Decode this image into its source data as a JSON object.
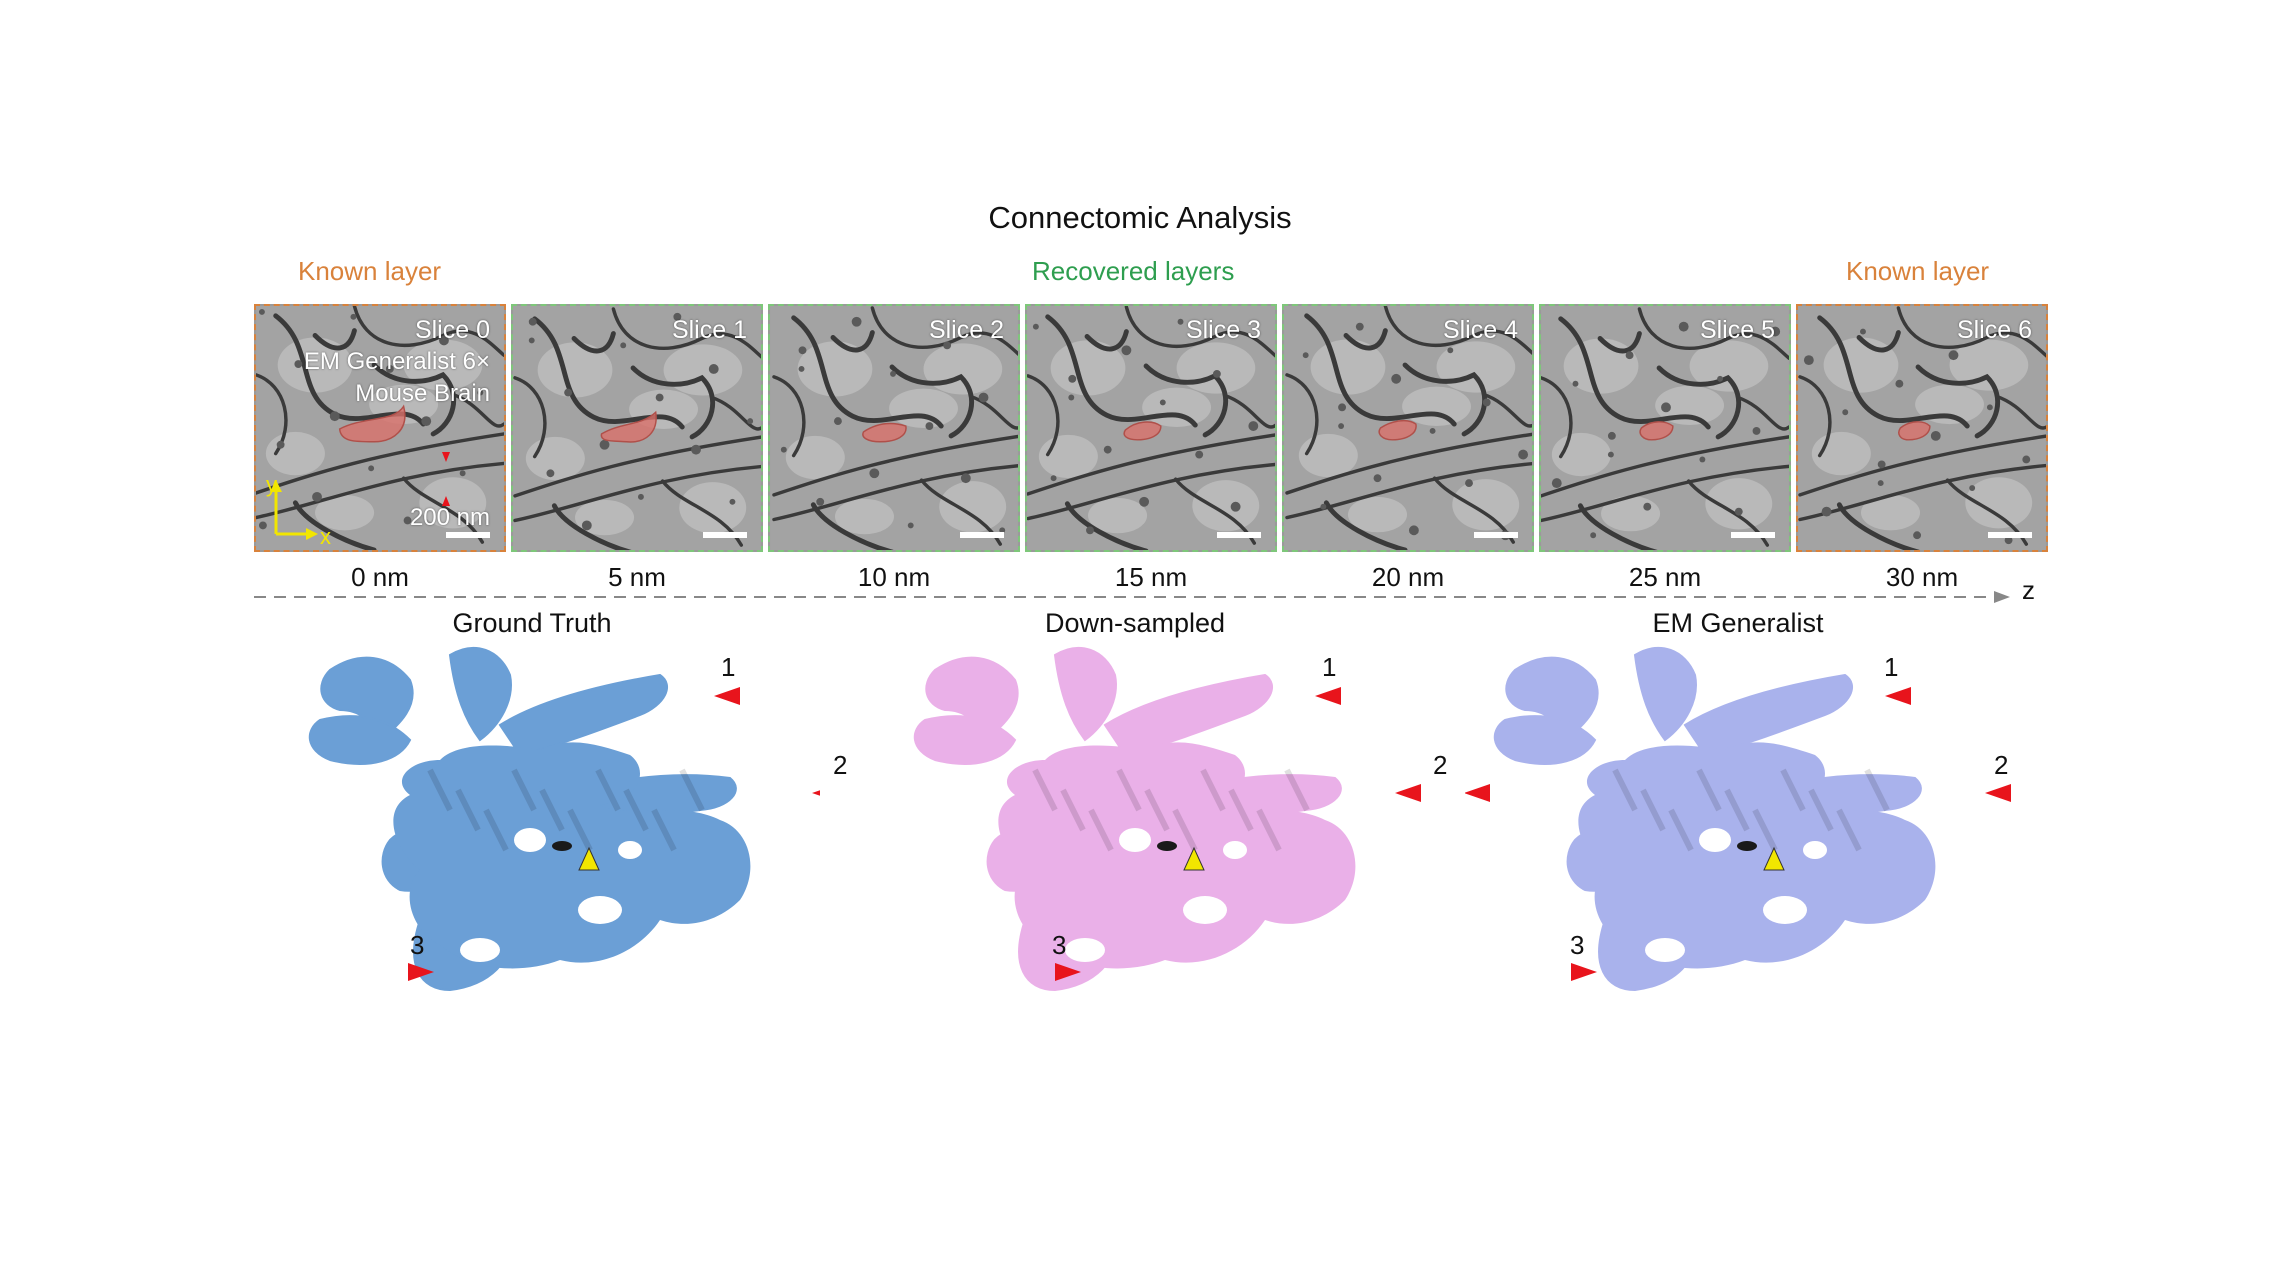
{
  "figure": {
    "title": "Connectomic Analysis",
    "known_layer_label": "Known layer",
    "recovered_label": "Recovered layers",
    "axis_label": "z"
  },
  "slices": [
    {
      "label": "Slice 0",
      "depth": "0 nm",
      "type": "known"
    },
    {
      "label": "Slice 1",
      "depth": "5 nm",
      "type": "recovered"
    },
    {
      "label": "Slice 2",
      "depth": "10 nm",
      "type": "recovered"
    },
    {
      "label": "Slice 3",
      "depth": "15 nm",
      "type": "recovered"
    },
    {
      "label": "Slice 4",
      "depth": "20 nm",
      "type": "recovered"
    },
    {
      "label": "Slice 5",
      "depth": "25 nm",
      "type": "recovered"
    },
    {
      "label": "Slice 6",
      "depth": "30 nm",
      "type": "known"
    }
  ],
  "slice0_info": {
    "line1": "EM Generalist 6×",
    "line2": "Mouse Brain",
    "scale_bar": "200 nm",
    "axis_y": "y",
    "axis_x": "x"
  },
  "renders": [
    {
      "title": "Ground Truth",
      "color": "#6b9fd6",
      "marker_labels": [
        "1",
        "2",
        "3"
      ]
    },
    {
      "title": "Down-sampled",
      "color": "#eab0e8",
      "marker_labels": [
        "1",
        "2",
        "3"
      ]
    },
    {
      "title": "EM Generalist",
      "color": "#a9b2ec",
      "marker_labels": [
        "1",
        "2",
        "2",
        "3"
      ]
    }
  ],
  "colors": {
    "known": "#d9823b",
    "recovered": "#2e9e4f",
    "segment": "#d9706a",
    "marker_red": "#e8141c",
    "marker_yellow": "#f2e600"
  }
}
